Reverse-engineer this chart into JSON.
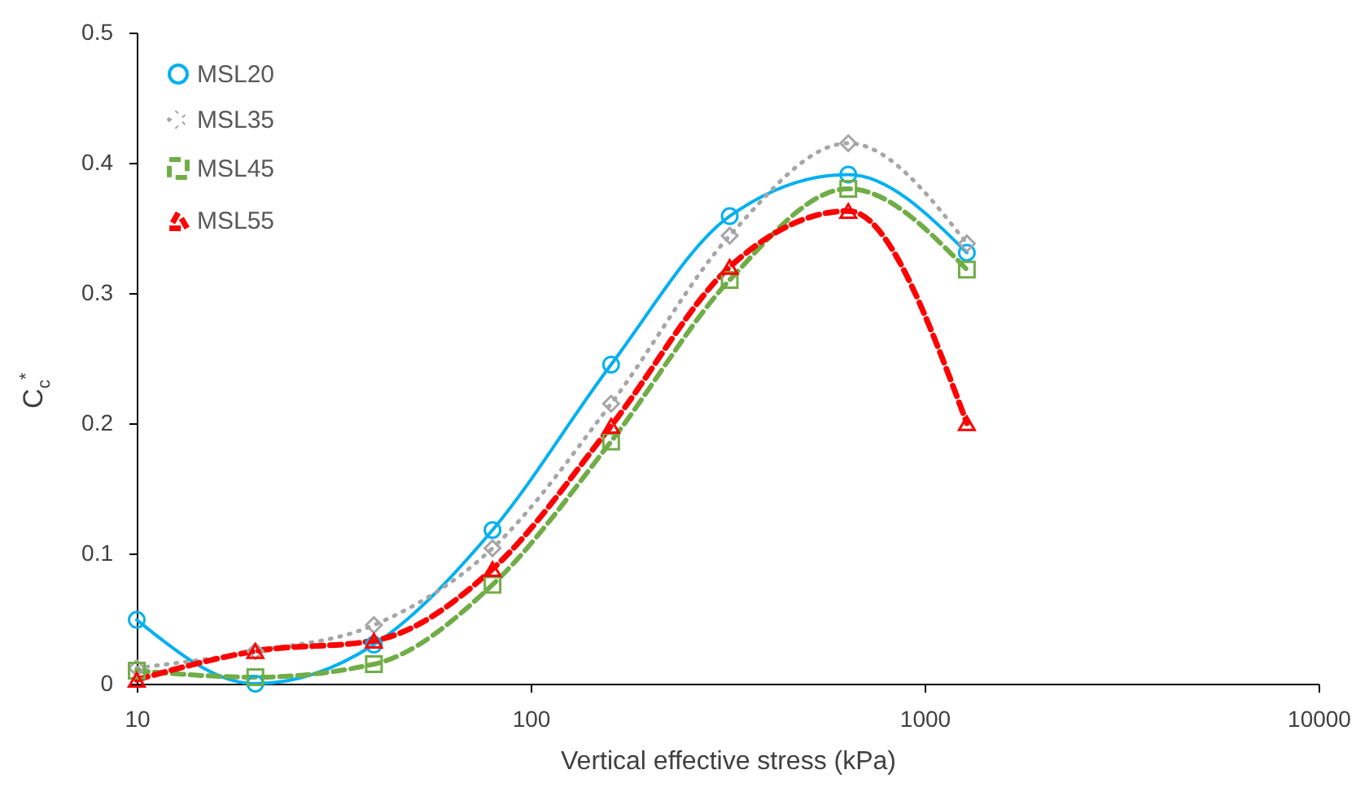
{
  "chart_data": {
    "type": "line",
    "xlabel": "Vertical effective stress (kPa)",
    "ylabel": "C$_{c}$$^{*}$",
    "x": [
      10,
      20,
      40,
      80,
      160,
      320,
      640,
      1280
    ],
    "series": [
      {
        "name": "MSL20",
        "color": "#00b0f0",
        "marker": "circle",
        "line_style": "solid",
        "values": [
          0.049,
          0.0,
          0.03,
          0.118,
          0.245,
          0.359,
          0.391,
          0.331
        ]
      },
      {
        "name": "MSL35",
        "color": "#a6a6a6",
        "marker": "diamond",
        "line_style": "dotted",
        "values": [
          0.012,
          0.025,
          0.045,
          0.104,
          0.215,
          0.344,
          0.415,
          0.338
        ]
      },
      {
        "name": "MSL45",
        "color": "#70ad47",
        "marker": "square",
        "line_style": "dashed",
        "values": [
          0.01,
          0.005,
          0.015,
          0.076,
          0.186,
          0.31,
          0.38,
          0.318
        ]
      },
      {
        "name": "MSL55",
        "color": "#ff0000",
        "marker": "triangle",
        "line_style": "dashed",
        "values": [
          0.003,
          0.025,
          0.033,
          0.088,
          0.198,
          0.32,
          0.363,
          0.2
        ]
      }
    ],
    "log": "x",
    "xlim": [
      10,
      10000
    ],
    "xticks": [
      10,
      100,
      1000,
      10000
    ],
    "ylim": [
      0,
      0.5
    ],
    "yticks": [
      0,
      0.1,
      0.2,
      0.3,
      0.4,
      0.5
    ],
    "grid": false,
    "legend": "top left"
  }
}
